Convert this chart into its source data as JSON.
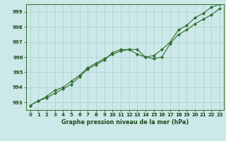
{
  "xlabel": "Graphe pression niveau de la mer (hPa)",
  "x": [
    0,
    1,
    2,
    3,
    4,
    5,
    6,
    7,
    8,
    9,
    10,
    11,
    12,
    13,
    14,
    15,
    16,
    17,
    18,
    19,
    20,
    21,
    22,
    23
  ],
  "line1": [
    992.8,
    993.1,
    993.3,
    993.6,
    993.9,
    994.2,
    994.7,
    995.2,
    995.5,
    995.8,
    996.3,
    996.5,
    996.5,
    996.2,
    996.0,
    996.1,
    996.5,
    997.0,
    997.8,
    998.1,
    998.6,
    998.9,
    999.3,
    999.5
  ],
  "line2": [
    992.8,
    993.1,
    993.4,
    993.8,
    994.0,
    994.4,
    994.8,
    995.3,
    995.6,
    995.9,
    996.2,
    996.4,
    996.5,
    996.5,
    996.0,
    995.9,
    996.0,
    996.9,
    997.5,
    997.8,
    998.2,
    998.5,
    998.8,
    999.2
  ],
  "line_color": "#2d6e2d",
  "marker_color": "#2d6e2d",
  "bg_color": "#cce8e8",
  "grid_color": "#afd4d4",
  "ylim": [
    992.5,
    999.5
  ],
  "yticks": [
    993,
    994,
    995,
    996,
    997,
    998,
    999
  ],
  "xlim": [
    -0.5,
    23.5
  ],
  "xticks": [
    0,
    1,
    2,
    3,
    4,
    5,
    6,
    7,
    8,
    9,
    10,
    11,
    12,
    13,
    14,
    15,
    16,
    17,
    18,
    19,
    20,
    21,
    22,
    23
  ],
  "label_fontsize": 5.8,
  "tick_fontsize": 5.0,
  "line_width": 0.8,
  "marker_size": 2.2
}
